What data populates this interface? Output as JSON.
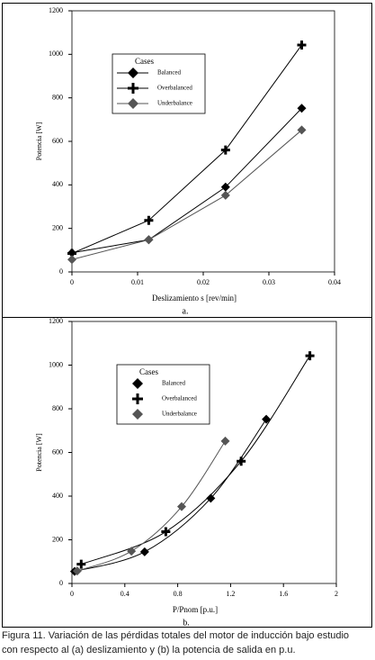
{
  "chart_data": [
    {
      "type": "line",
      "sublabel": "a.",
      "xlabel": "Deslizamiento s [rev/min]",
      "ylabel": "Potencia [W]",
      "xlim": [
        0,
        0.04
      ],
      "xticks": [
        0,
        0.01,
        0.02,
        0.03,
        0.04
      ],
      "ylim": [
        0,
        1200
      ],
      "yticks": [
        0,
        200,
        400,
        600,
        800,
        1000,
        1200
      ],
      "legend_title": "Cases",
      "smooth": false,
      "series": [
        {
          "name": "Balanced",
          "color": "#000000",
          "marker": "diamond",
          "x": [
            0,
            0.0117,
            0.0234,
            0.035
          ],
          "values": [
            88,
            148,
            390,
            752
          ]
        },
        {
          "name": "Overbalanced",
          "color": "#000000",
          "marker": "plus",
          "x": [
            0,
            0.0117,
            0.0234,
            0.035
          ],
          "values": [
            85,
            237,
            560,
            1043
          ]
        },
        {
          "name": "Underbalance",
          "color": "#555555",
          "marker": "diamond",
          "x": [
            0,
            0.0117,
            0.0234,
            0.035
          ],
          "values": [
            57,
            148,
            352,
            652
          ]
        }
      ]
    },
    {
      "type": "line",
      "sublabel": "b.",
      "xlabel": "P/Pnom [p.u.]",
      "ylabel": "Potencia [W]",
      "xlim": [
        0,
        2
      ],
      "xticks": [
        0,
        0.4,
        0.8,
        1.2,
        1.6,
        2
      ],
      "ylim": [
        0,
        1200
      ],
      "yticks": [
        0,
        200,
        400,
        600,
        800,
        1000,
        1200
      ],
      "legend_title": "Cases",
      "smooth": true,
      "series": [
        {
          "name": "Balanced",
          "color": "#000000",
          "marker": "diamond",
          "x": [
            0.02,
            0.55,
            1.05,
            1.47
          ],
          "values": [
            55,
            145,
            390,
            752
          ]
        },
        {
          "name": "Overbalanced",
          "color": "#000000",
          "marker": "plus",
          "x": [
            0.07,
            0.71,
            1.28,
            1.8
          ],
          "values": [
            88,
            237,
            560,
            1043
          ]
        },
        {
          "name": "Underbalance",
          "color": "#555555",
          "marker": "diamond",
          "x": [
            0.04,
            0.45,
            0.83,
            1.16
          ],
          "values": [
            57,
            148,
            352,
            652
          ]
        }
      ]
    }
  ],
  "figure_caption": [
    "Figura 11. Variación de las pérdidas totales del motor de inducción bajo estudio",
    "con respecto al (a) deslizamiento y (b) la potencia de salida en p.u."
  ]
}
